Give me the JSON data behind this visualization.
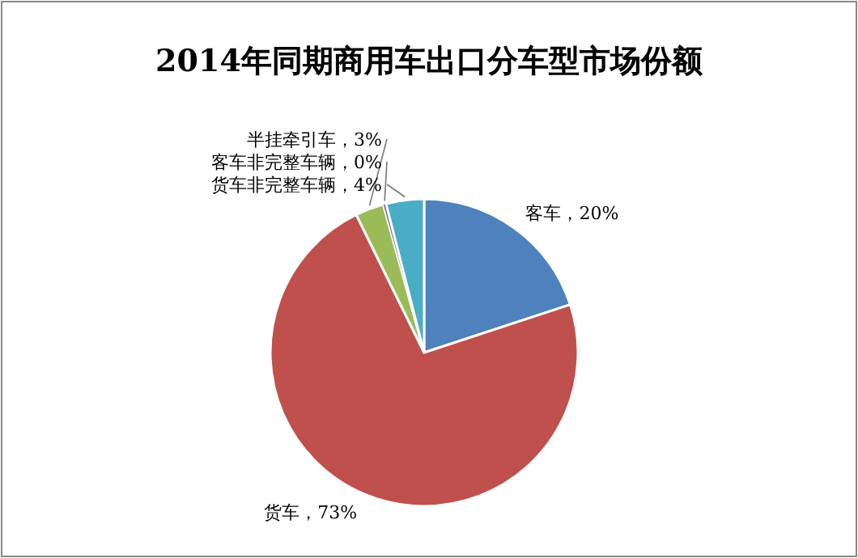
{
  "chart_data": {
    "type": "pie",
    "title": "2014年同期商用车出口分车型市场份额",
    "categories": [
      "客车",
      "货车",
      "半挂牵引车",
      "客车非完整车辆",
      "货车非完整车辆"
    ],
    "values": [
      20,
      73,
      3,
      0.3,
      4
    ],
    "value_labels": [
      "，20%",
      "，73%",
      "，3%",
      "，0%",
      "，4%"
    ],
    "colors": [
      "#4f81bd",
      "#c0504d",
      "#9bbb59",
      "#8064a2",
      "#4bacc6"
    ]
  }
}
